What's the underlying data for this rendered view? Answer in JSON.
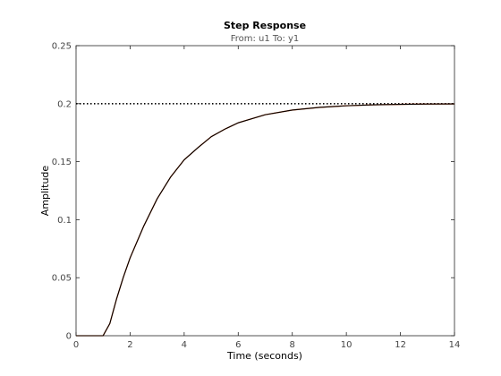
{
  "chart_data": {
    "type": "line",
    "title": "Step Response",
    "subtitle": "From: u1  To: y1",
    "xlabel": "Time (seconds)",
    "ylabel": "Amplitude",
    "xlim": [
      0,
      14
    ],
    "ylim": [
      0,
      0.25
    ],
    "x_ticks": [
      "0",
      "2",
      "4",
      "6",
      "8",
      "10",
      "12",
      "14"
    ],
    "y_ticks": [
      "0",
      "0.05",
      "0.1",
      "0.15",
      "0.2",
      "0.25"
    ],
    "grid": false,
    "reference_line": {
      "y": 0.2,
      "style": "dotted",
      "color": "#000000"
    },
    "series": [
      {
        "color": "#000000",
        "style": "solid",
        "x": [
          0,
          1,
          1.25,
          1.5,
          1.75,
          2,
          2.5,
          3,
          3.5,
          4,
          4.5,
          5,
          5.5,
          6,
          7,
          8,
          9,
          10,
          11,
          12,
          13,
          14
        ],
        "y": [
          0,
          0,
          0.0105,
          0.0318,
          0.0505,
          0.0671,
          0.0943,
          0.118,
          0.1368,
          0.1516,
          0.1619,
          0.1715,
          0.178,
          0.1835,
          0.1905,
          0.1945,
          0.1968,
          0.1982,
          0.199,
          0.1994,
          0.1997,
          0.1998
        ]
      },
      {
        "color": "#d95319",
        "style": "solid",
        "x": [
          0,
          1,
          1.25,
          1.5,
          1.75,
          2,
          2.5,
          3,
          3.5,
          4,
          4.5,
          5,
          5.5,
          6,
          7,
          8,
          9,
          10,
          11,
          12,
          13,
          14
        ],
        "y": [
          0,
          0,
          0.0105,
          0.0318,
          0.0505,
          0.0671,
          0.0943,
          0.118,
          0.1368,
          0.1516,
          0.1619,
          0.1715,
          0.178,
          0.1835,
          0.1905,
          0.1945,
          0.1968,
          0.1982,
          0.199,
          0.1994,
          0.1997,
          0.1998
        ]
      }
    ]
  }
}
